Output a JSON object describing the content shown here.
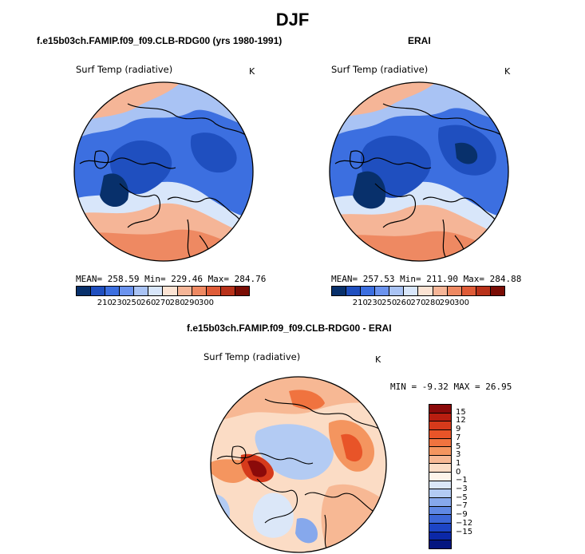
{
  "title": "DJF",
  "panels": {
    "model": {
      "title": "f.e15b03ch.FAMIP.f09_f09.CLB-RDG00 (yrs 1980-1991)",
      "variable": "Surf Temp (radiative)",
      "units": "K",
      "stats": "MEAN= 258.59   Min= 229.46   Max= 284.76"
    },
    "obs": {
      "title": "ERAI",
      "variable": "Surf Temp (radiative)",
      "units": "K",
      "stats": "MEAN= 257.53   Min= 211.90   Max= 284.88"
    },
    "diff": {
      "title": "f.e15b03ch.FAMIP.f09_f09.CLB-RDG00 - ERAI",
      "variable": "Surf Temp (radiative)",
      "units": "K",
      "stats": "MIN =   -9.32 MAX =   26.95"
    }
  },
  "colorbar_abs": {
    "labels": [
      "210",
      "230",
      "250",
      "260",
      "270",
      "280",
      "290",
      "300"
    ],
    "colors": [
      "#08306b",
      "#1f4fbf",
      "#3c6fe0",
      "#6b93ee",
      "#a9c3f4",
      "#d8e6fa",
      "#fbe3d3",
      "#f5b597",
      "#ee8962",
      "#df5c38",
      "#b8321a",
      "#7a0d05"
    ]
  },
  "colorbar_diff": {
    "labels": [
      "15",
      "12",
      "9",
      "7",
      "5",
      "3",
      "1",
      "0",
      "−1",
      "−3",
      "−5",
      "−7",
      "−9",
      "−12",
      "−15"
    ],
    "colors": [
      "#8b0a0a",
      "#b91e10",
      "#d63a1b",
      "#e85428",
      "#f0733f",
      "#f4955f",
      "#f7b894",
      "#fbdcc5",
      "#fdf4ea",
      "#dbe7f8",
      "#b3cbf3",
      "#86a8ec",
      "#5f88e4",
      "#3c67d8",
      "#1d45c6",
      "#0b28a8",
      "#041680"
    ]
  }
}
